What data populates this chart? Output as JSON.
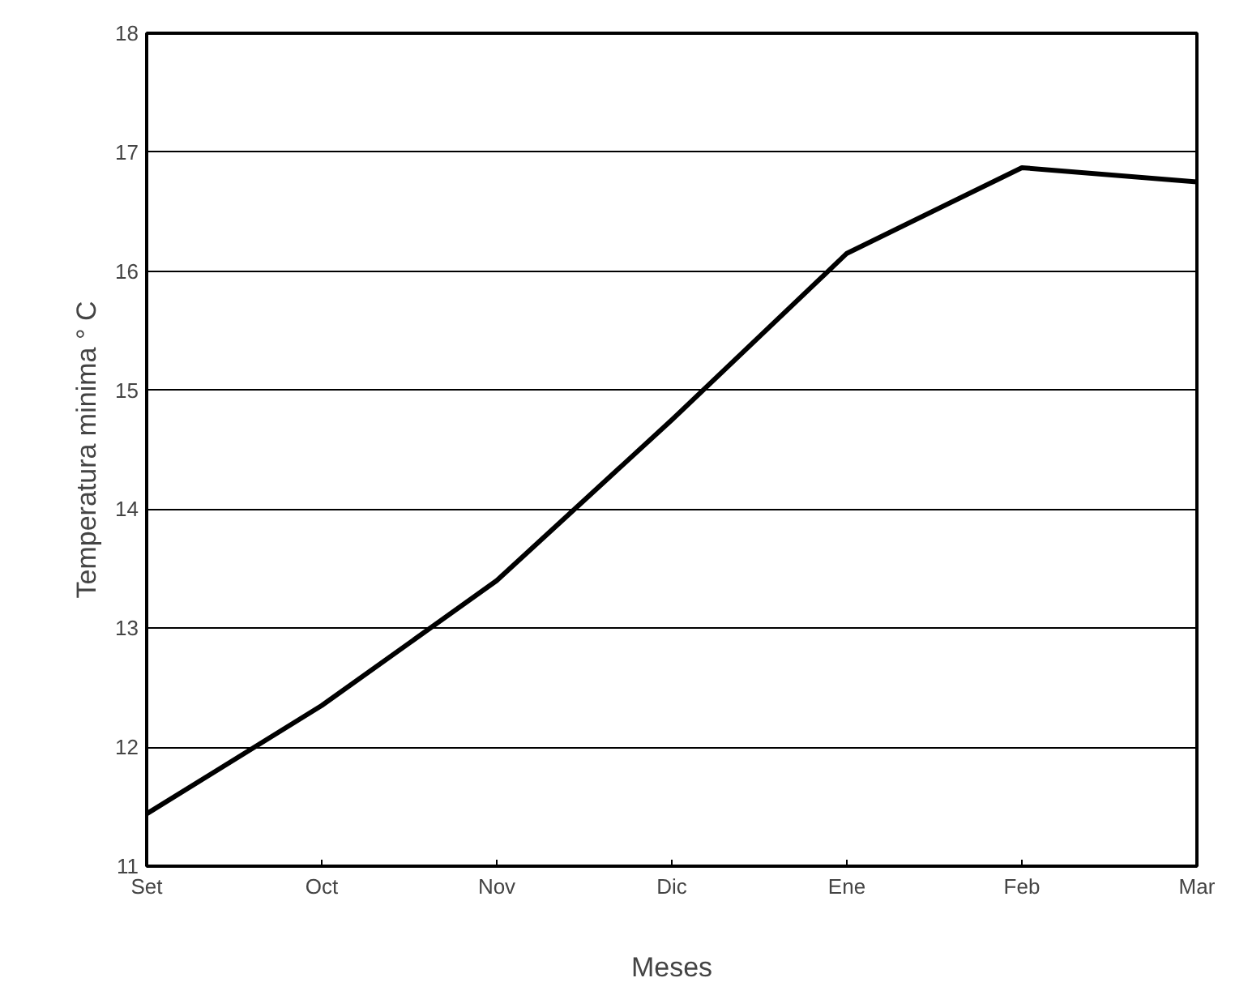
{
  "chart_data": {
    "type": "line",
    "xlabel": "Meses",
    "ylabel": "Temperatura minima ° C",
    "categories": [
      "Set",
      "Oct",
      "Nov",
      "Dic",
      "Ene",
      "Feb",
      "Mar"
    ],
    "series": [
      {
        "color": "#000000",
        "values": [
          11.44,
          12.35,
          13.4,
          14.75,
          16.15,
          16.87,
          16.75
        ]
      }
    ],
    "ylim": [
      11,
      18
    ],
    "yticks": [
      11,
      12,
      13,
      14,
      15,
      16,
      17,
      18
    ],
    "grid": "y",
    "marker": "none",
    "line_style": "solid"
  }
}
